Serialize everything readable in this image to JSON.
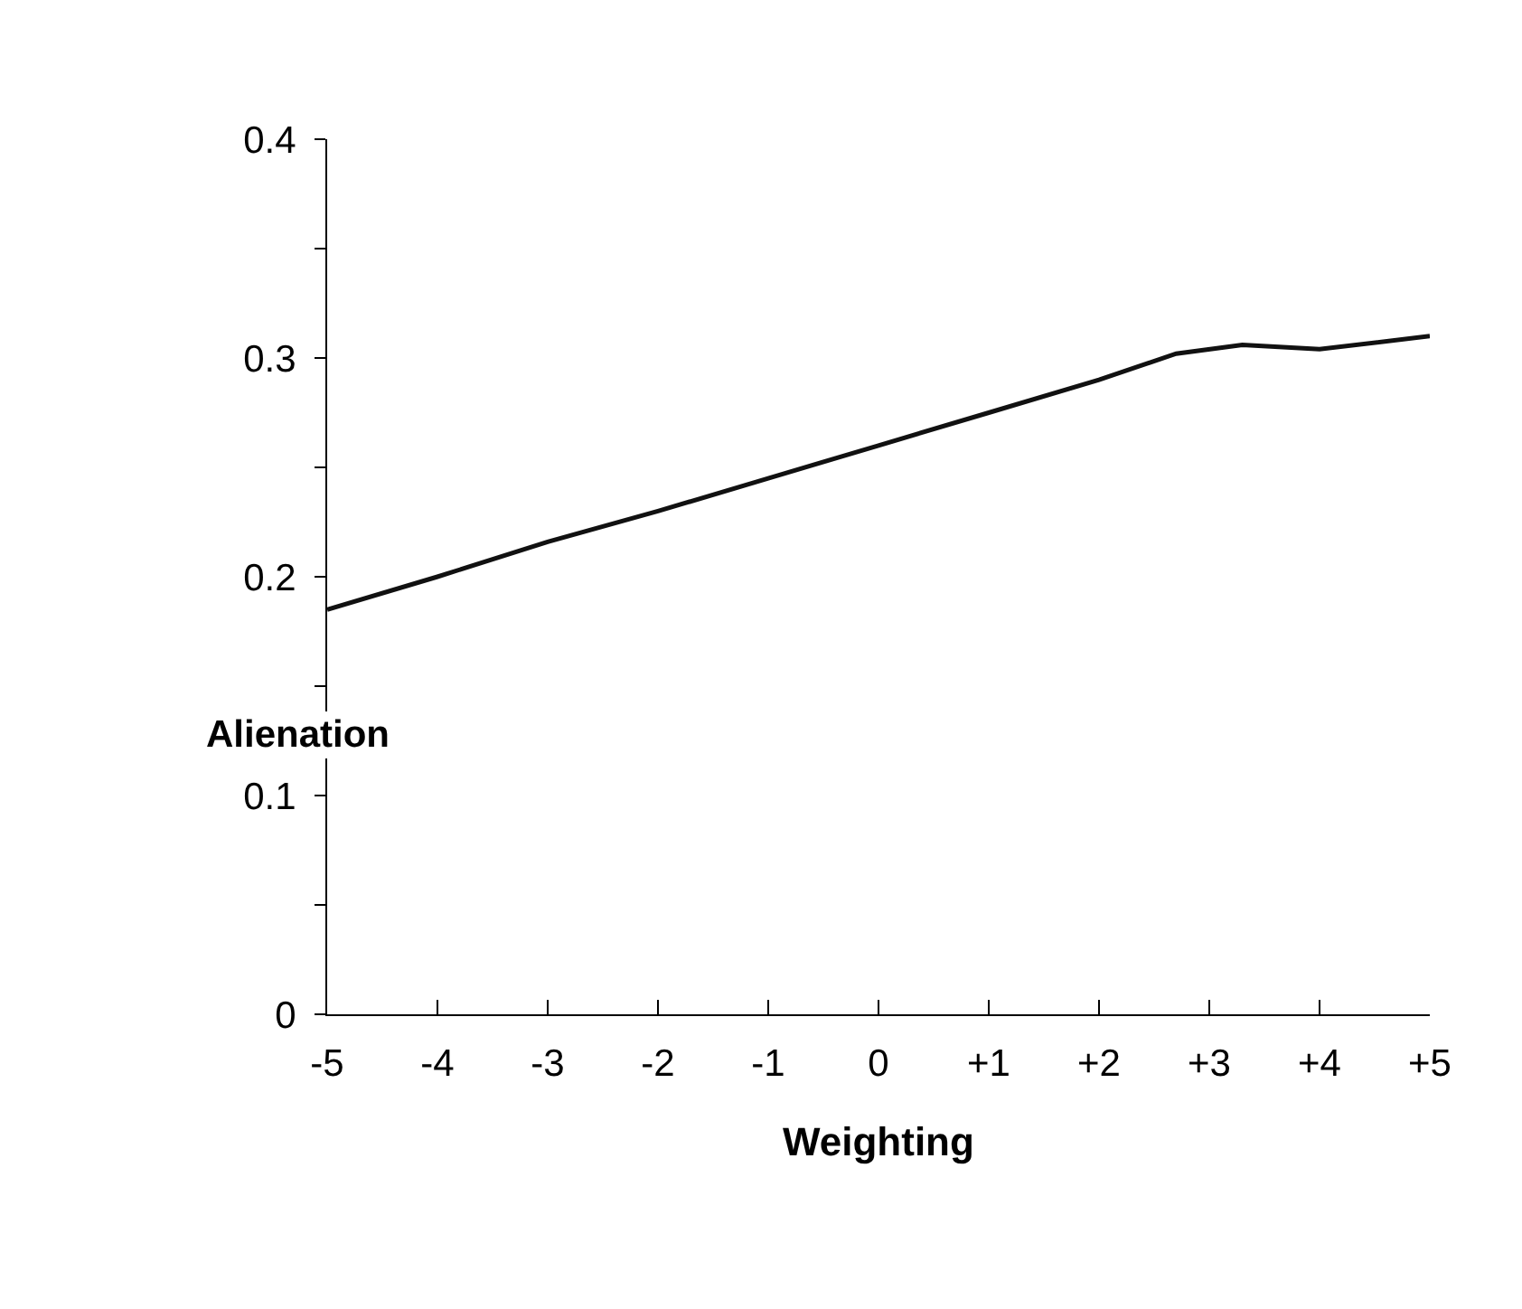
{
  "chart_data": {
    "type": "line",
    "xlabel": "Weighting",
    "ylabel": "Alienation",
    "x": [
      -5,
      -4,
      -3,
      -2,
      -1,
      0,
      1,
      2,
      2.7,
      3.3,
      4,
      5
    ],
    "series": [
      {
        "color": "#111111",
        "values": [
          0.185,
          0.2,
          0.216,
          0.23,
          0.245,
          0.26,
          0.275,
          0.29,
          0.302,
          0.306,
          0.304,
          0.31
        ]
      }
    ],
    "xlim": [
      -5,
      5
    ],
    "xticks": [
      -5,
      -4,
      -3,
      -2,
      -1,
      0,
      {
        "value": 1,
        "label": "+1"
      },
      {
        "value": 2,
        "label": "+2"
      },
      {
        "value": 3,
        "label": "+3"
      },
      {
        "value": 4,
        "label": "+4"
      },
      {
        "value": 5,
        "label": "+5"
      }
    ],
    "ylim": [
      0,
      0.4
    ],
    "yticks": [
      0,
      {
        "value": 0.05,
        "label": null
      },
      0.1,
      {
        "value": 0.15,
        "label": null
      },
      0.2,
      {
        "value": 0.25,
        "label": null
      },
      0.3,
      {
        "value": 0.35,
        "label": null
      },
      0.4
    ],
    "grid": false,
    "marker": "none",
    "line_style": "solid"
  }
}
